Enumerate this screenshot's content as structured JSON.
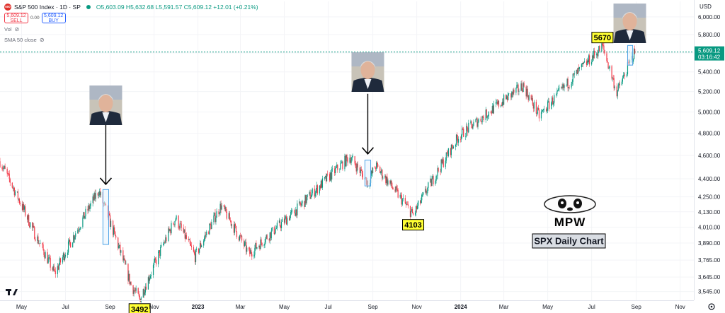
{
  "header": {
    "symbol_icon_label": "500",
    "title": "S&P 500 Index · 1D · SP",
    "ohlc": "O5,603.09 H5,632.68 L5,591.57 C5,609.12 +12.01 (+0.21%)",
    "sell_price": "5,609.12",
    "sell_label": "SELL",
    "spread": "0.00",
    "buy_price": "5,609.12",
    "buy_label": "BUY",
    "indicators": [
      "Vol",
      "SMA 50 close"
    ],
    "eye_icon": "eye-off-icon",
    "status_icon": "market-open-dot-icon"
  },
  "axis": {
    "currency": "USD",
    "y_ticks": [
      "6,000.00",
      "5,800.00",
      "5,600.00",
      "5,400.00",
      "5,200.00",
      "5,000.00",
      "4,800.00",
      "4,600.00",
      "4,400.00",
      "4,250.00",
      "4,130.00",
      "4,010.00",
      "3,890.00",
      "3,765.00",
      "3,645.00",
      "3,545.00"
    ],
    "x_ticks": [
      {
        "label": "May",
        "bold": false
      },
      {
        "label": "Jul",
        "bold": false
      },
      {
        "label": "Sep",
        "bold": false
      },
      {
        "label": "Nov",
        "bold": false
      },
      {
        "label": "2023",
        "bold": true
      },
      {
        "label": "Mar",
        "bold": false
      },
      {
        "label": "May",
        "bold": false
      },
      {
        "label": "Jul",
        "bold": false
      },
      {
        "label": "Sep",
        "bold": false
      },
      {
        "label": "Nov",
        "bold": false
      },
      {
        "label": "2024",
        "bold": true
      },
      {
        "label": "Mar",
        "bold": false
      },
      {
        "label": "May",
        "bold": false
      },
      {
        "label": "Jul",
        "bold": false
      },
      {
        "label": "Sep",
        "bold": false
      },
      {
        "label": "Nov",
        "bold": false
      }
    ],
    "current_price": "5,609.12",
    "countdown": "03:16:42",
    "settings_icon": "gear-icon"
  },
  "chart_data": {
    "type": "candlestick",
    "symbol": "S&P 500 Index",
    "interval": "1D",
    "y_scale": "log",
    "ylim": [
      3510,
      6180
    ],
    "xlim": [
      "2022-04-01",
      "2024-11-20"
    ],
    "close_path": [
      [
        "2022-04-01",
        4550
      ],
      [
        "2022-05-20",
        3950
      ],
      [
        "2022-06-16",
        3670
      ],
      [
        "2022-08-16",
        4300
      ],
      [
        "2022-09-30",
        3590
      ],
      [
        "2022-10-12",
        3492
      ],
      [
        "2022-12-01",
        4080
      ],
      [
        "2022-12-28",
        3790
      ],
      [
        "2023-02-02",
        4180
      ],
      [
        "2023-03-13",
        3810
      ],
      [
        "2023-05-15",
        4130
      ],
      [
        "2023-07-31",
        4590
      ],
      [
        "2023-08-25",
        4370
      ],
      [
        "2023-09-05",
        4510
      ],
      [
        "2023-10-27",
        4103
      ],
      [
        "2023-12-29",
        4770
      ],
      [
        "2024-03-28",
        5260
      ],
      [
        "2024-04-19",
        4960
      ],
      [
        "2024-07-16",
        5670
      ],
      [
        "2024-08-05",
        5190
      ],
      [
        "2024-08-30",
        5609
      ]
    ],
    "annotations": [
      {
        "type": "label",
        "text": "3492",
        "date": "2022-10-12",
        "value": 3492
      },
      {
        "type": "label",
        "text": "4103",
        "date": "2023-10-27",
        "value": 4103
      },
      {
        "type": "label",
        "text": "5670",
        "date": "2024-07-16",
        "value": 5670
      },
      {
        "type": "highlight",
        "date_start": "2022-08-22",
        "date_end": "2022-08-30",
        "low": 3880,
        "high": 4310
      },
      {
        "type": "highlight",
        "date_start": "2023-08-21",
        "date_end": "2023-08-29",
        "low": 4340,
        "high": 4560
      },
      {
        "type": "highlight",
        "date_start": "2024-08-20",
        "date_end": "2024-08-27",
        "low": 5470,
        "high": 5680
      },
      {
        "type": "arrow",
        "date": "2022-08-26",
        "value": 4330
      },
      {
        "type": "arrow",
        "date": "2023-08-25",
        "value": 4590
      },
      {
        "type": "image",
        "subject": "man-in-suit-portrait",
        "date": "2022-08-26"
      },
      {
        "type": "image",
        "subject": "man-in-suit-portrait",
        "date": "2023-08-25"
      },
      {
        "type": "image",
        "subject": "man-in-suit-portrait",
        "date": "2024-08-23"
      },
      {
        "type": "text",
        "text": "SPX Daily Chart"
      },
      {
        "type": "logo",
        "text": "MPW",
        "subject": "panda"
      }
    ],
    "up_color": "#089981",
    "down_color": "#f23645",
    "callout_fill": "#ffff33",
    "highlight_stroke": "#4ea3e6",
    "highlight_fill": "#e3f2fd",
    "price_line_color": "#089981"
  }
}
